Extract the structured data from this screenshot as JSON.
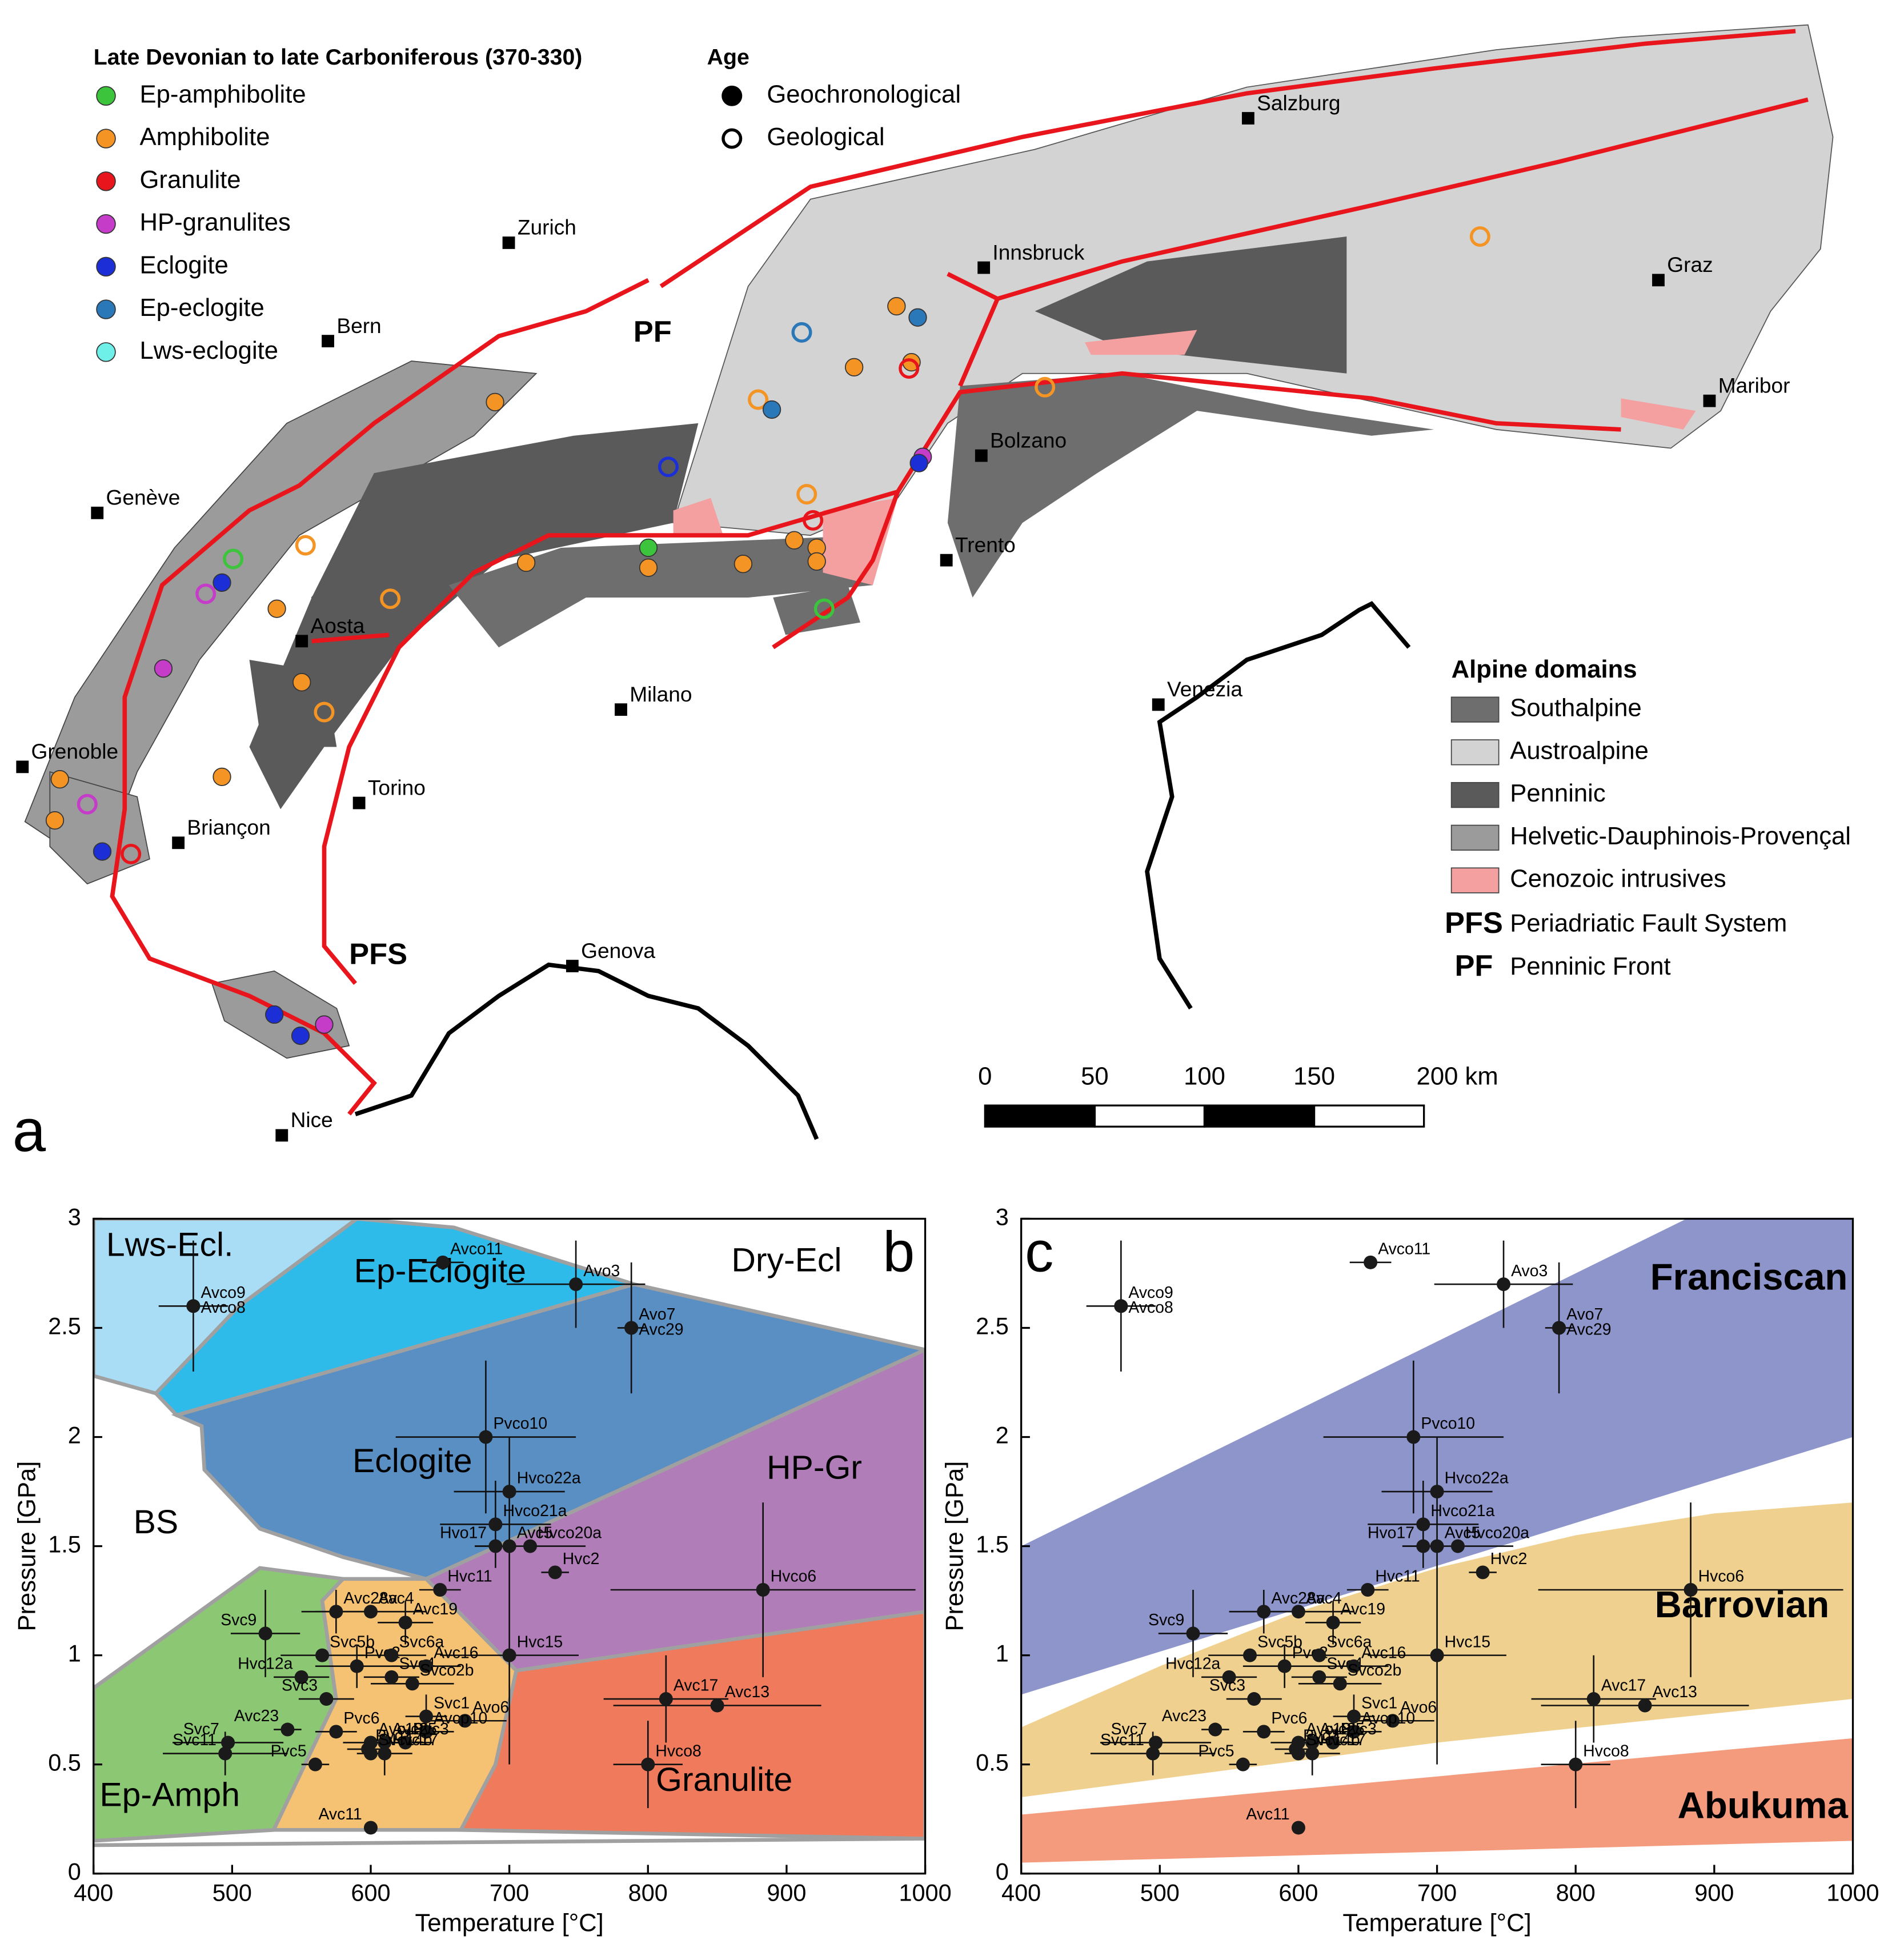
{
  "map": {
    "panel": "a",
    "legend_title": "Late Devonian to late Carboniferous (370-330)",
    "facies": [
      {
        "name": "Ep-amphibolite",
        "color": "#3cc43c"
      },
      {
        "name": "Amphibolite",
        "color": "#f39425"
      },
      {
        "name": "Granulite",
        "color": "#e8161c"
      },
      {
        "name": "HP-granulites",
        "color": "#c43cc8"
      },
      {
        "name": "Eclogite",
        "color": "#1c2fd6"
      },
      {
        "name": "Ep-eclogite",
        "color": "#2a78b8"
      },
      {
        "name": "Lws-eclogite",
        "color": "#6ef0e8"
      }
    ],
    "age_title": "Age",
    "age": [
      "Geochronological",
      "Geological"
    ],
    "cities": [
      "Salzburg",
      "Zurich",
      "Innsbruck",
      "Graz",
      "Bern",
      "Maribor",
      "Bolzano",
      "Genève",
      "Trento",
      "Aosta",
      "Milano",
      "Venezia",
      "Grenoble",
      "Torino",
      "Briançon",
      "Genova",
      "Nice"
    ],
    "faults": [
      "PF",
      "PFS"
    ],
    "fault_color": "#e8161c",
    "domains_title": "Alpine domains",
    "domains": [
      {
        "name": "Southalpine",
        "color": "#6e6e6e"
      },
      {
        "name": "Austroalpine",
        "color": "#d3d3d3"
      },
      {
        "name": "Penninic",
        "color": "#5a5a5a"
      },
      {
        "name": "Helvetic-Dauphinois-Provençal",
        "color": "#9b9b9b"
      },
      {
        "name": "Cenozoic intrusives",
        "color": "#f5a0a0"
      }
    ],
    "fault_legend": [
      {
        "abbr": "PFS",
        "name": "Periadriatic Fault System"
      },
      {
        "abbr": "PF",
        "name": "Penninic Front"
      }
    ],
    "scale": {
      "lim": [
        0,
        200
      ],
      "ticks": [
        0,
        50,
        100,
        150,
        {
          "value": 200,
          "label": "200 km"
        }
      ]
    }
  },
  "chart_data": [
    {
      "type": "scatter",
      "panel": "b",
      "xlabel": "Temperature [°C]",
      "ylabel": "Pressure [GPa]",
      "xlim": [
        400,
        1000
      ],
      "ylim": [
        0,
        3
      ],
      "xticks": [
        400,
        500,
        600,
        700,
        800,
        900,
        1000
      ],
      "yticks": [
        0,
        0.5,
        1,
        1.5,
        2,
        2.5,
        3
      ],
      "point_color": "#1a1a1a",
      "fields": [
        {
          "name": "Lws-Ecl.",
          "color": "#a9ddf6"
        },
        {
          "name": "Ep-Eclogite",
          "color": "#2fbbea"
        },
        {
          "name": "Dry-Ecl"
        },
        {
          "name": "Eclogite",
          "color": "#5a8fc4"
        },
        {
          "name": "BS"
        },
        {
          "name": "HP-Gr",
          "color": "#b07db8"
        },
        {
          "name": "Ep-Amph",
          "color": "#8cc874"
        },
        {
          "name": "Granulite",
          "color": "#ef7a5c"
        },
        {
          "color": "#f5c172"
        }
      ],
      "labels": [
        "Avco9",
        "Avco8",
        "Avco11",
        "Avo3",
        "Avo7",
        "Avc29",
        "Pvco10",
        "Hvco22a",
        "Hvco21a",
        "Hvo17",
        "Avc5",
        "Hvco20a",
        "Hvc2",
        "Hvco6",
        "Hvc11",
        "Hvc15",
        "Avc28a",
        "Avc4",
        "Avc19",
        "Svc9",
        "Svc5b",
        "Hvc12a",
        "Pvc2",
        "Svc6a",
        "Svc4",
        "Avc16",
        "Svco2b",
        "Svc3",
        "Svc1",
        "Avo6",
        "Avcp10",
        "Avc23",
        "Pvc6",
        "Avc18",
        "Avc25",
        "Pyc7",
        "Pvc3",
        "Hvc17",
        "Pvc5",
        "Svc14b",
        "Svc7",
        "Svc11",
        "Avc17",
        "Avc13",
        "Hvco8",
        "Avc11"
      ],
      "x": [
        472,
        472,
        652,
        748,
        788,
        788,
        683,
        700,
        690,
        690,
        700,
        715,
        733,
        883,
        650,
        700,
        575,
        600,
        625,
        524,
        565,
        550,
        590,
        615,
        615,
        640,
        630,
        568,
        640,
        668,
        640,
        540,
        575,
        600,
        610,
        598,
        625,
        610,
        560,
        600,
        497,
        495,
        813,
        850,
        800,
        600
      ],
      "y": [
        2.6,
        2.6,
        2.8,
        2.7,
        2.5,
        2.5,
        2.0,
        1.75,
        1.6,
        1.5,
        1.5,
        1.5,
        1.38,
        1.3,
        1.3,
        1.0,
        1.2,
        1.2,
        1.15,
        1.1,
        1.0,
        0.9,
        0.95,
        1.0,
        0.9,
        0.95,
        0.87,
        0.8,
        0.72,
        0.7,
        0.65,
        0.66,
        0.65,
        0.6,
        0.6,
        0.57,
        0.6,
        0.55,
        0.5,
        0.55,
        0.6,
        0.55,
        0.8,
        0.77,
        0.5,
        0.21
      ],
      "x_err": [
        25,
        null,
        15,
        50,
        10,
        null,
        65,
        40,
        40,
        15,
        null,
        40,
        10,
        110,
        15,
        50,
        25,
        40,
        20,
        25,
        30,
        20,
        30,
        25,
        20,
        25,
        30,
        20,
        15,
        30,
        20,
        10,
        15,
        20,
        15,
        15,
        20,
        20,
        10,
        null,
        40,
        45,
        45,
        75,
        25,
        null
      ],
      "y_err": [
        0.3,
        null,
        null,
        0.2,
        0.3,
        null,
        0.35,
        0.25,
        0.2,
        null,
        null,
        null,
        null,
        0.4,
        null,
        0.5,
        0.1,
        null,
        0.1,
        0.2,
        null,
        null,
        0.1,
        null,
        null,
        null,
        null,
        null,
        0.1,
        null,
        null,
        null,
        null,
        null,
        null,
        null,
        null,
        0.1,
        null,
        null,
        null,
        0.1,
        0.2,
        null,
        0.2,
        null
      ]
    },
    {
      "type": "scatter",
      "panel": "c",
      "xlabel": "Temperature [°C]",
      "ylabel": "Pressure [GPa]",
      "xlim": [
        400,
        1000
      ],
      "ylim": [
        0,
        3
      ],
      "xticks": [
        400,
        500,
        600,
        700,
        800,
        900,
        1000
      ],
      "yticks": [
        0,
        0.5,
        1,
        1.5,
        2,
        2.5,
        3
      ],
      "point_color": "#1a1a1a",
      "fields": [
        {
          "name": "Franciscan",
          "color": "#8d95cb"
        },
        {
          "name": "Barrovian",
          "color": "#efd08e"
        },
        {
          "name": "Abukuma",
          "color": "#f49b7d"
        }
      ],
      "labels": [
        "Avco9",
        "Avco8",
        "Avco11",
        "Avo3",
        "Avo7",
        "Avc29",
        "Pvco10",
        "Hvco22a",
        "Hvco21a",
        "Hvo17",
        "Avc5",
        "Hvco20a",
        "Hvc2",
        "Hvco6",
        "Hvc11",
        "Hvc15",
        "Avc28a",
        "Avc4",
        "Avc19",
        "Svc9",
        "Svc5b",
        "Hvc12a",
        "Pvc2",
        "Svc6a",
        "Svc4",
        "Avc16",
        "Svco2b",
        "Svc3",
        "Svc1",
        "Avo6",
        "Avcp10",
        "Avc23",
        "Pvc6",
        "Avc18",
        "Avc25",
        "Pyc7",
        "Pvc3",
        "Hvc17",
        "Pvc5",
        "Svc14b",
        "Svc7",
        "Svc11",
        "Avc17",
        "Avc13",
        "Hvco8",
        "Avc11"
      ],
      "x": [
        472,
        472,
        652,
        748,
        788,
        788,
        683,
        700,
        690,
        690,
        700,
        715,
        733,
        883,
        650,
        700,
        575,
        600,
        625,
        524,
        565,
        550,
        590,
        615,
        615,
        640,
        630,
        568,
        640,
        668,
        640,
        540,
        575,
        600,
        610,
        598,
        625,
        610,
        560,
        600,
        497,
        495,
        813,
        850,
        800,
        600
      ],
      "y": [
        2.6,
        2.6,
        2.8,
        2.7,
        2.5,
        2.5,
        2.0,
        1.75,
        1.6,
        1.5,
        1.5,
        1.5,
        1.38,
        1.3,
        1.3,
        1.0,
        1.2,
        1.2,
        1.15,
        1.1,
        1.0,
        0.9,
        0.95,
        1.0,
        0.9,
        0.95,
        0.87,
        0.8,
        0.72,
        0.7,
        0.65,
        0.66,
        0.65,
        0.6,
        0.6,
        0.57,
        0.6,
        0.55,
        0.5,
        0.55,
        0.6,
        0.55,
        0.8,
        0.77,
        0.5,
        0.21
      ],
      "x_err": [
        25,
        null,
        15,
        50,
        10,
        null,
        65,
        40,
        40,
        15,
        null,
        40,
        10,
        110,
        15,
        50,
        25,
        40,
        20,
        25,
        30,
        20,
        30,
        25,
        20,
        25,
        30,
        20,
        15,
        30,
        20,
        10,
        15,
        20,
        15,
        15,
        20,
        20,
        10,
        null,
        40,
        45,
        45,
        75,
        25,
        null
      ],
      "y_err": [
        0.3,
        null,
        null,
        0.2,
        0.3,
        null,
        0.35,
        0.25,
        0.2,
        null,
        null,
        null,
        null,
        0.4,
        null,
        0.5,
        0.1,
        null,
        0.1,
        0.2,
        null,
        null,
        0.1,
        null,
        null,
        null,
        null,
        null,
        0.1,
        null,
        null,
        null,
        null,
        null,
        null,
        null,
        null,
        0.1,
        null,
        null,
        null,
        0.1,
        0.2,
        null,
        0.2,
        null
      ]
    }
  ]
}
